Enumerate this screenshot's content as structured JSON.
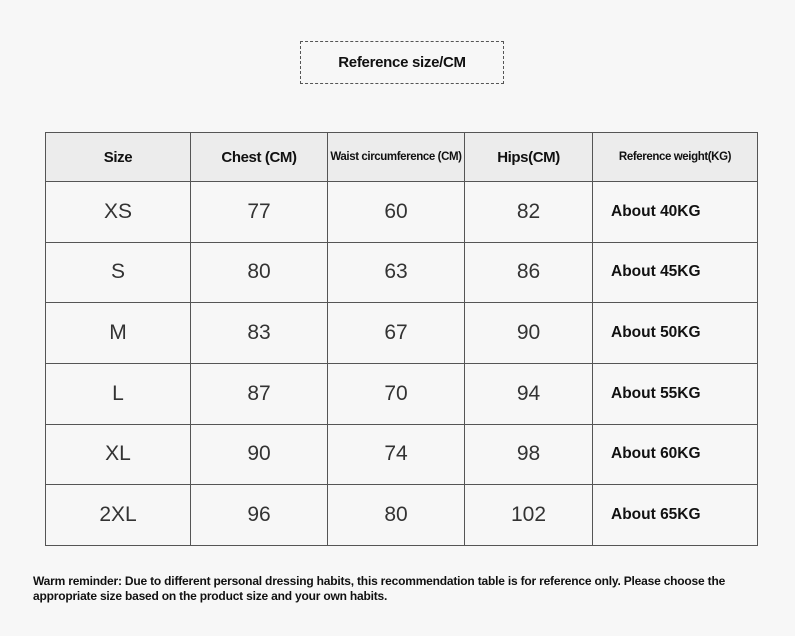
{
  "title": "Reference size/CM",
  "table": {
    "headers": [
      "Size",
      "Chest (CM)",
      "Waist circumference (CM)",
      "Hips(CM)",
      "Reference weight(KG)"
    ],
    "rows": [
      [
        "XS",
        "77",
        "60",
        "82",
        "About 40KG"
      ],
      [
        "S",
        "80",
        "63",
        "86",
        "About 45KG"
      ],
      [
        "M",
        "83",
        "67",
        "90",
        "About 50KG"
      ],
      [
        "L",
        "87",
        "70",
        "94",
        "About 55KG"
      ],
      [
        "XL",
        "90",
        "74",
        "98",
        "About 60KG"
      ],
      [
        "2XL",
        "96",
        "80",
        "102",
        "About 65KG"
      ]
    ]
  },
  "note": "Warm reminder: Due to different personal dressing habits, this recommendation table is for reference only. Please choose the appropriate size based on the product size and your own habits."
}
